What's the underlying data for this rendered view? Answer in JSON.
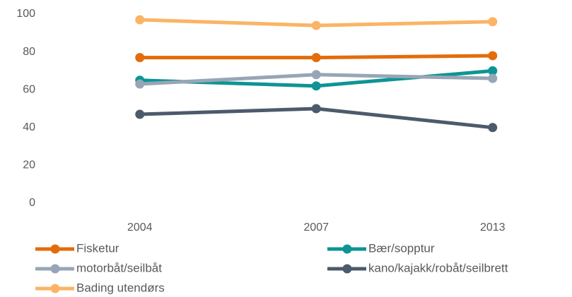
{
  "chart_data": {
    "type": "line",
    "categories": [
      "2004",
      "2007",
      "2013"
    ],
    "series": [
      {
        "name": "Fisketur",
        "color": "#e46c0a",
        "values": [
          77,
          77,
          78
        ]
      },
      {
        "name": "Bær/sopptur",
        "color": "#0e9494",
        "values": [
          65,
          62,
          70
        ]
      },
      {
        "name": "motorbåt/seilbåt",
        "color": "#97a6b6",
        "values": [
          63,
          68,
          66
        ]
      },
      {
        "name": "kano/kajakk/robåt/seilbrett",
        "color": "#4b5b6b",
        "values": [
          47,
          50,
          40
        ]
      },
      {
        "name": "Bading utendørs",
        "color": "#fbb465",
        "values": [
          97,
          94,
          96
        ]
      }
    ],
    "ylim": [
      0,
      100
    ],
    "yticks": [
      0,
      20,
      40,
      60,
      80,
      100
    ],
    "grid": false,
    "legend": "bottom"
  }
}
